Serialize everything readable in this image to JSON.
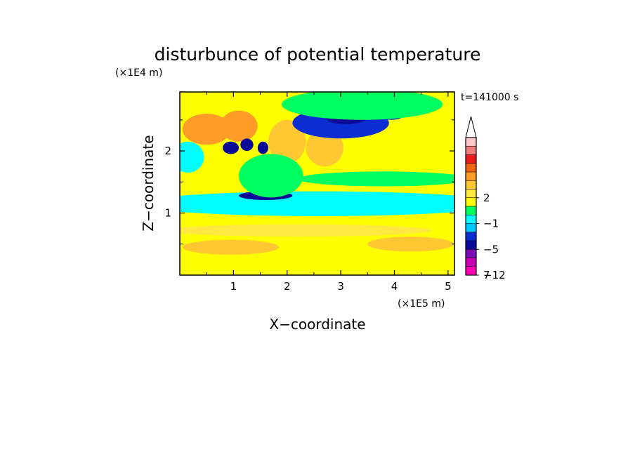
{
  "chart_data": {
    "type": "heatmap",
    "title": "disturbunce of potential temperature",
    "time_label": "t=141000 s",
    "xlabel": "X−coordinate",
    "ylabel": "Z−coordinate",
    "x_unit": "(×1E5 m)",
    "y_unit": "(×1E4 m)",
    "xlim": [
      0,
      5.12
    ],
    "ylim": [
      0,
      2.95
    ],
    "x_ticks": [
      "1",
      "2",
      "3",
      "4",
      "5"
    ],
    "y_ticks": [
      "1",
      "2"
    ],
    "grid": false,
    "colorbar": {
      "placement": "right",
      "extend": "max",
      "tick_labels": [
        "7",
        "2",
        "−1",
        "−5",
        "−12"
      ],
      "levels_top_to_bottom": [
        14,
        12,
        10,
        8,
        6,
        4,
        2,
        1,
        0,
        -1,
        -2,
        -3,
        -5,
        -8,
        -10,
        -12
      ],
      "colors_top_to_bottom": [
        "#ffc8c8",
        "#f08080",
        "#e81c1c",
        "#f06414",
        "#ff9c28",
        "#ffc832",
        "#ffe840",
        "#ffff00",
        "#00ff60",
        "#00ffff",
        "#00c8ff",
        "#0a2ed2",
        "#0a0a96",
        "#7b0ab4",
        "#c800b4",
        "#ff00b4"
      ],
      "arrow_color": "#ffffff"
    },
    "background_level_color": "#ffff00",
    "features": [
      {
        "label": "warm",
        "level": 4,
        "x": 0.95,
        "z": 0.45,
        "sx": 0.9,
        "sz": 0.12
      },
      {
        "label": "warm",
        "level": 4,
        "x": 4.3,
        "z": 0.5,
        "sx": 0.8,
        "sz": 0.12
      },
      {
        "label": "warm",
        "level": 2,
        "x": 2.2,
        "z": 0.72,
        "sx": 2.5,
        "sz": 0.1
      },
      {
        "label": "cool",
        "level": -1,
        "x": 2.6,
        "z": 1.15,
        "sx": 3.4,
        "sz": 0.2
      },
      {
        "label": "cool",
        "level": -1,
        "x": 0.15,
        "z": 1.9,
        "sx": 0.3,
        "sz": 0.25
      },
      {
        "label": "cool",
        "level": 0,
        "x": 3.8,
        "z": 1.55,
        "sx": 1.6,
        "sz": 0.12
      },
      {
        "label": "warm",
        "level": 6,
        "x": 0.5,
        "z": 2.35,
        "sx": 0.45,
        "sz": 0.25
      },
      {
        "label": "warm",
        "level": 6,
        "x": 1.1,
        "z": 2.4,
        "sx": 0.35,
        "sz": 0.25
      },
      {
        "label": "warm",
        "level": 4,
        "x": 2.0,
        "z": 2.15,
        "sx": 0.35,
        "sz": 0.35
      },
      {
        "label": "warm",
        "level": 4,
        "x": 2.7,
        "z": 2.05,
        "sx": 0.35,
        "sz": 0.3
      },
      {
        "label": "cold",
        "level": -5,
        "x": 0.95,
        "z": 2.05,
        "sx": 0.15,
        "sz": 0.1
      },
      {
        "label": "cold",
        "level": -5,
        "x": 1.25,
        "z": 2.1,
        "sx": 0.12,
        "sz": 0.1
      },
      {
        "label": "cold",
        "level": -5,
        "x": 1.55,
        "z": 2.05,
        "sx": 0.1,
        "sz": 0.1
      },
      {
        "label": "cold",
        "level": -5,
        "x": 1.6,
        "z": 1.28,
        "sx": 0.5,
        "sz": 0.07
      },
      {
        "label": "cold",
        "level": -3,
        "x": 3.0,
        "z": 2.45,
        "sx": 0.9,
        "sz": 0.25
      },
      {
        "label": "cold",
        "level": -5,
        "x": 3.1,
        "z": 2.55,
        "sx": 0.4,
        "sz": 0.12
      },
      {
        "label": "cold",
        "level": -3,
        "x": 3.95,
        "z": 2.65,
        "sx": 0.3,
        "sz": 0.15
      },
      {
        "label": "cool",
        "level": 0,
        "x": 3.4,
        "z": 2.75,
        "sx": 1.5,
        "sz": 0.25
      },
      {
        "label": "cool",
        "level": 0,
        "x": 1.7,
        "z": 1.6,
        "sx": 0.6,
        "sz": 0.35
      }
    ]
  }
}
